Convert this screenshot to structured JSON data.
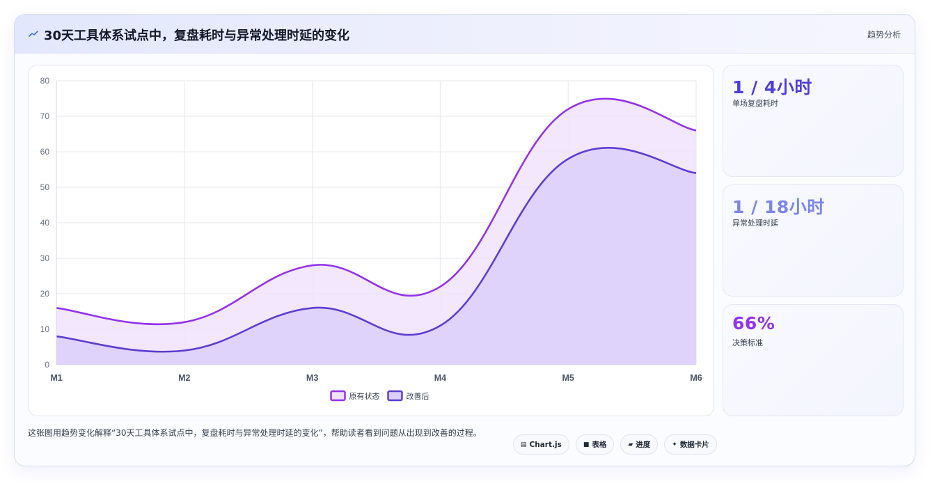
{
  "header": {
    "title": "30天工具体系试点中，复盘耗时与异常处理时延的变化",
    "tag": "趋势分析",
    "icon": "trend-icon"
  },
  "chart_data": {
    "type": "area",
    "title": "",
    "xlabel": "",
    "ylabel": "",
    "categories": [
      "M1",
      "M2",
      "M3",
      "M4",
      "M5",
      "M6"
    ],
    "ylim": [
      0,
      80
    ],
    "yticks": [
      0,
      10,
      20,
      30,
      40,
      50,
      60,
      70,
      80
    ],
    "grid": true,
    "legend": "bottom",
    "series": [
      {
        "name": "原有状态",
        "values": [
          16,
          12,
          28,
          22,
          72,
          66
        ],
        "color": "#9333ea",
        "fill": "#f0e3fb"
      },
      {
        "name": "改善后",
        "values": [
          8,
          4,
          16,
          11,
          58,
          54
        ],
        "color": "#5b3fd0",
        "fill": "#dccefa"
      }
    ]
  },
  "stats": [
    {
      "value": "1 / 4小时",
      "label": "单场复盘耗时",
      "color": "#4f3fd6"
    },
    {
      "value": "1 / 18小时",
      "label": "异常处理时延",
      "color": "#7b86e8"
    },
    {
      "value": "66%",
      "label": "决策标准",
      "color": "#9333ea"
    }
  ],
  "footer": {
    "description": "这张图用趋势变化解释“30天工具体系试点中，复盘耗时与异常处理时延的变化”，帮助读者看到问题从出现到改善的过程。",
    "tags": [
      {
        "label": "Chart.js",
        "icon": "chart-icon"
      },
      {
        "label": "表格",
        "icon": "table-icon"
      },
      {
        "label": "进度",
        "icon": "progress-icon"
      },
      {
        "label": "数据卡片",
        "icon": "sparkle-icon"
      }
    ]
  }
}
